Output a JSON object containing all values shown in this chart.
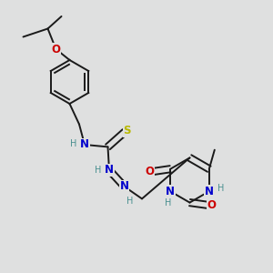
{
  "bg_color": "#dfe0e0",
  "bond_color": "#1a1a1a",
  "bond_width": 1.4,
  "dbo": 0.012,
  "atom_colors": {
    "N": "#0000cc",
    "O": "#cc0000",
    "S": "#b8b800",
    "H": "#4a9090"
  },
  "fs": 8.5,
  "fsh": 7.0
}
